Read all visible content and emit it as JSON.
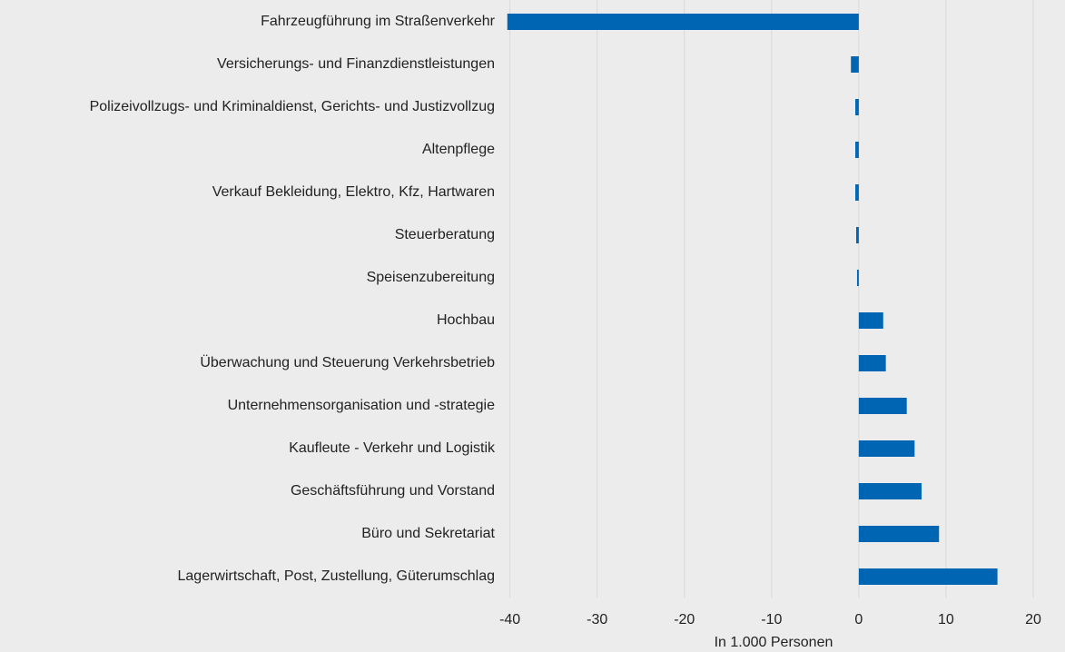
{
  "chart_data": {
    "type": "barh",
    "xlabel": "In 1.000 Personen",
    "categories": [
      "Fahrzeugführung im Straßenverkehr",
      "Versicherungs- und Finanzdienstleistungen",
      "Polizeivollzugs- und Kriminaldienst, Gerichts- und Justizvollzug",
      "Altenpflege",
      "Verkauf Bekleidung, Elektro, Kfz, Hartwaren",
      "Steuerberatung",
      "Speisenzubereitung",
      "Hochbau",
      "Überwachung und Steuerung Verkehrsbetrieb",
      "Unternehmensorganisation und -strategie",
      "Kaufleute - Verkehr und Logistik",
      "Geschäftsführung und Vorstand",
      "Büro und Sekretariat",
      "Lagerwirtschaft, Post, Zustellung, Güterumschlag"
    ],
    "values": [
      -40.3,
      -0.9,
      -0.4,
      -0.4,
      -0.4,
      -0.3,
      -0.2,
      2.8,
      3.1,
      5.5,
      6.4,
      7.2,
      9.2,
      15.9
    ],
    "color": "#0066b3",
    "xlim": [
      -40.9,
      22.5
    ],
    "xticks": [
      -40,
      -30,
      -20,
      -10,
      0,
      10,
      20
    ],
    "grid": true
  }
}
